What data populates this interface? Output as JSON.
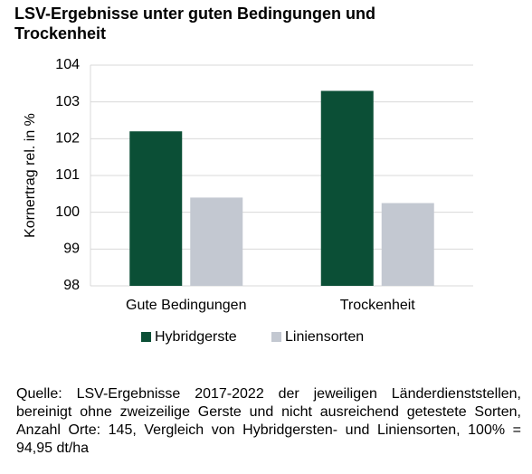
{
  "chart_data": {
    "type": "bar",
    "title": "LSV-Ergebnisse unter guten Bedingungen und Trockenheit",
    "y_label": "Kornertrag rel. in %",
    "categories": [
      "Gute Bedingungen",
      "Trockenheit"
    ],
    "series": [
      {
        "name": "Hybridgerste",
        "color": "#0b4f36",
        "values": [
          102.2,
          103.3
        ]
      },
      {
        "name": "Liniensorten",
        "color": "#c3c8d1",
        "values": [
          100.4,
          100.25
        ]
      }
    ],
    "ylim": [
      98,
      104
    ],
    "yticks": [
      98,
      99,
      100,
      101,
      102,
      103,
      104
    ],
    "grid": true,
    "legend": "bottom",
    "source": "Quelle: LSV-Ergebnisse 2017-2022 der jeweiligen Länder­dienststellen, bereinigt ohne zweizeilige Gerste und nicht ausreichend getestete Sorten, Anzahl Orte: 145, Vergleich von Hybridgersten- und Liniensorten, 100% = 94,95 dt/ha"
  }
}
